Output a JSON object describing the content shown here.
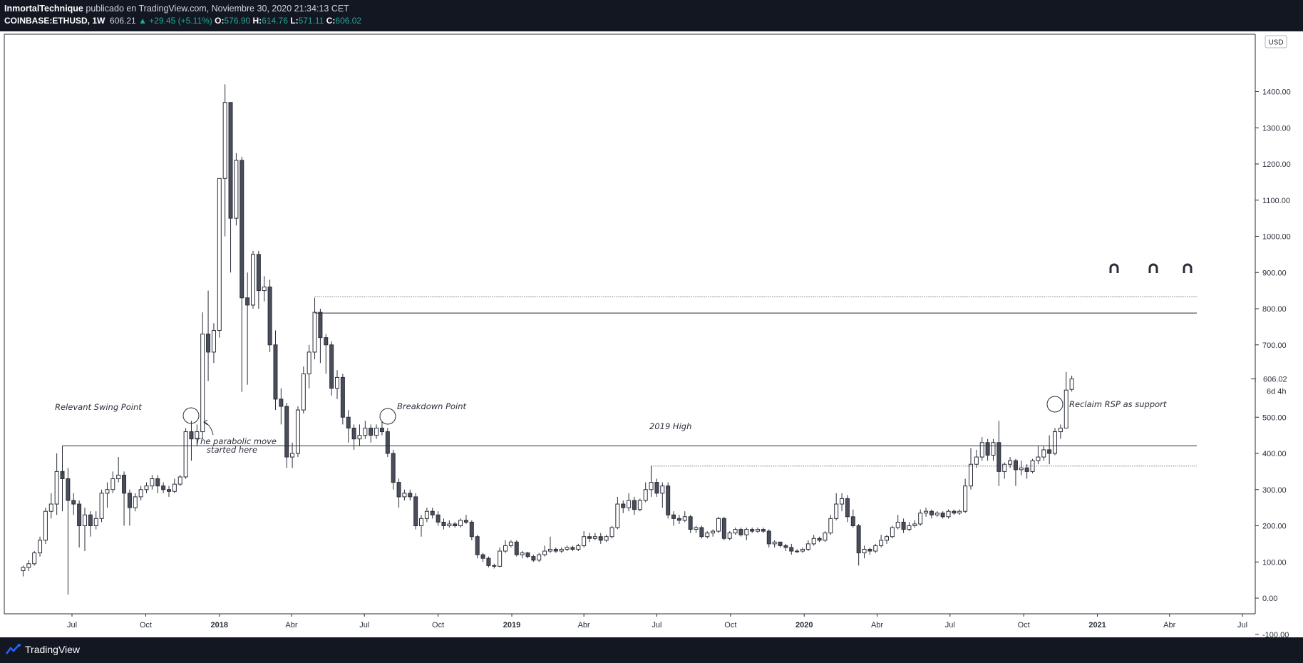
{
  "header": {
    "author": "InmortalTechnique",
    "published": "publicado en TradingView.com, Noviembre 30, 2020 21:34:13 CET",
    "symbol": "COINBASE:ETHUSD, 1W",
    "price": "606.21",
    "change": "▲ +29.45 (+5.11%)",
    "o_label": "O:",
    "o_value": "576.90",
    "h_label": "H:",
    "h_value": "614.76",
    "l_label": "L:",
    "l_value": "571.11",
    "c_label": "C:",
    "c_value": "606.02"
  },
  "footer": {
    "brand": "TradingView"
  },
  "colors": {
    "up_fill": "#ffffff",
    "down_fill": "#4a4e5a",
    "wick": "#2a2e39",
    "line": "#2a2e39",
    "price_tag": "#ffffff"
  },
  "chart_data": {
    "type": "candlestick",
    "currency_label": "USD",
    "timeframe": "1W",
    "ylim": [
      -130,
      1480
    ],
    "y_ticks": [
      -100,
      0,
      100,
      200,
      300,
      400,
      500,
      600,
      700,
      800,
      900,
      1000,
      1100,
      1200,
      1300,
      1400
    ],
    "y_tick_labels": [
      "-100.00",
      "0.00",
      "100.00",
      "200.00",
      "300.00",
      "400.00",
      "500.00",
      "600.00",
      "700.00",
      "800.00",
      "900.00",
      "1000.00",
      "1100.00",
      "1200.00",
      "1300.00",
      "1400.00"
    ],
    "current_price": {
      "value": 606.02,
      "label": "606.02",
      "countdown": "6d 4h"
    },
    "x_axis": [
      {
        "label": "Jul",
        "date": "2017-07"
      },
      {
        "label": "Oct",
        "date": "2017-10"
      },
      {
        "label": "2018",
        "date": "2018-01",
        "bold": true
      },
      {
        "label": "Abr",
        "date": "2018-04"
      },
      {
        "label": "Jul",
        "date": "2018-07"
      },
      {
        "label": "Oct",
        "date": "2018-10"
      },
      {
        "label": "2019",
        "date": "2019-01",
        "bold": true
      },
      {
        "label": "Abr",
        "date": "2019-04"
      },
      {
        "label": "Jul",
        "date": "2019-07"
      },
      {
        "label": "Oct",
        "date": "2019-10"
      },
      {
        "label": "2020",
        "date": "2020-01",
        "bold": true
      },
      {
        "label": "Abr",
        "date": "2020-04"
      },
      {
        "label": "Jul",
        "date": "2020-07"
      },
      {
        "label": "Oct",
        "date": "2020-10"
      },
      {
        "label": "2021",
        "date": "2021-01",
        "bold": true
      },
      {
        "label": "Abr",
        "date": "2021-04"
      },
      {
        "label": "Jul",
        "date": "2021-07"
      }
    ],
    "candles": [
      [
        "2017-05-01",
        76,
        90,
        60,
        85
      ],
      [
        "2017-05-08",
        85,
        105,
        75,
        95
      ],
      [
        "2017-05-15",
        95,
        130,
        90,
        125
      ],
      [
        "2017-05-22",
        125,
        170,
        115,
        160
      ],
      [
        "2017-05-29",
        160,
        250,
        150,
        240
      ],
      [
        "2017-06-05",
        240,
        290,
        220,
        260
      ],
      [
        "2017-06-12",
        260,
        400,
        230,
        350
      ],
      [
        "2017-06-19",
        350,
        360,
        240,
        330
      ],
      [
        "2017-06-26",
        330,
        360,
        10,
        270
      ],
      [
        "2017-07-03",
        270,
        290,
        230,
        260
      ],
      [
        "2017-07-10",
        260,
        270,
        140,
        200
      ],
      [
        "2017-07-17",
        200,
        250,
        130,
        230
      ],
      [
        "2017-07-24",
        230,
        240,
        170,
        200
      ],
      [
        "2017-07-31",
        200,
        240,
        190,
        220
      ],
      [
        "2017-08-07",
        220,
        300,
        210,
        290
      ],
      [
        "2017-08-14",
        290,
        320,
        250,
        300
      ],
      [
        "2017-08-21",
        300,
        350,
        290,
        330
      ],
      [
        "2017-08-28",
        330,
        390,
        320,
        340
      ],
      [
        "2017-09-04",
        340,
        350,
        200,
        290
      ],
      [
        "2017-09-11",
        290,
        300,
        200,
        250
      ],
      [
        "2017-09-18",
        250,
        290,
        240,
        280
      ],
      [
        "2017-09-25",
        280,
        310,
        270,
        300
      ],
      [
        "2017-10-02",
        300,
        320,
        290,
        310
      ],
      [
        "2017-10-09",
        310,
        340,
        300,
        330
      ],
      [
        "2017-10-16",
        330,
        340,
        290,
        310
      ],
      [
        "2017-10-23",
        310,
        320,
        290,
        300
      ],
      [
        "2017-10-30",
        300,
        310,
        280,
        295
      ],
      [
        "2017-11-06",
        295,
        330,
        290,
        315
      ],
      [
        "2017-11-13",
        315,
        340,
        310,
        335
      ],
      [
        "2017-11-20",
        335,
        470,
        330,
        460
      ],
      [
        "2017-11-27",
        460,
        490,
        380,
        440
      ],
      [
        "2017-12-04",
        440,
        480,
        420,
        460
      ],
      [
        "2017-12-11",
        460,
        790,
        440,
        730
      ],
      [
        "2017-12-18",
        730,
        850,
        600,
        680
      ],
      [
        "2017-12-25",
        680,
        760,
        650,
        740
      ],
      [
        "2018-01-01",
        740,
        1160,
        720,
        1160
      ],
      [
        "2018-01-08",
        1160,
        1420,
        1000,
        1370
      ],
      [
        "2018-01-15",
        1370,
        1370,
        900,
        1050
      ],
      [
        "2018-01-22",
        1050,
        1230,
        1030,
        1210
      ],
      [
        "2018-01-29",
        1210,
        1220,
        570,
        830
      ],
      [
        "2018-02-05",
        830,
        900,
        590,
        810
      ],
      [
        "2018-02-12",
        810,
        960,
        800,
        950
      ],
      [
        "2018-02-19",
        950,
        960,
        800,
        850
      ],
      [
        "2018-02-26",
        850,
        890,
        820,
        860
      ],
      [
        "2018-03-05",
        860,
        880,
        680,
        700
      ],
      [
        "2018-03-12",
        700,
        740,
        520,
        550
      ],
      [
        "2018-03-19",
        550,
        580,
        480,
        530
      ],
      [
        "2018-03-26",
        530,
        540,
        360,
        390
      ],
      [
        "2018-04-02",
        390,
        430,
        360,
        400
      ],
      [
        "2018-04-09",
        400,
        530,
        390,
        520
      ],
      [
        "2018-04-16",
        520,
        640,
        510,
        620
      ],
      [
        "2018-04-23",
        620,
        700,
        580,
        680
      ],
      [
        "2018-04-30",
        680,
        830,
        660,
        790
      ],
      [
        "2018-05-07",
        790,
        800,
        650,
        720
      ],
      [
        "2018-05-14",
        720,
        730,
        620,
        700
      ],
      [
        "2018-05-21",
        700,
        710,
        560,
        580
      ],
      [
        "2018-05-28",
        580,
        630,
        550,
        610
      ],
      [
        "2018-06-04",
        610,
        620,
        480,
        500
      ],
      [
        "2018-06-11",
        500,
        520,
        430,
        470
      ],
      [
        "2018-06-18",
        470,
        480,
        410,
        440
      ],
      [
        "2018-06-25",
        440,
        480,
        420,
        450
      ],
      [
        "2018-07-02",
        450,
        490,
        440,
        470
      ],
      [
        "2018-07-09",
        470,
        480,
        430,
        450
      ],
      [
        "2018-07-16",
        450,
        480,
        440,
        470
      ],
      [
        "2018-07-23",
        470,
        490,
        450,
        460
      ],
      [
        "2018-07-30",
        460,
        470,
        390,
        400
      ],
      [
        "2018-08-06",
        400,
        410,
        300,
        320
      ],
      [
        "2018-08-13",
        320,
        330,
        250,
        280
      ],
      [
        "2018-08-20",
        280,
        300,
        270,
        290
      ],
      [
        "2018-08-27",
        290,
        300,
        270,
        280
      ],
      [
        "2018-09-03",
        280,
        290,
        190,
        200
      ],
      [
        "2018-09-10",
        200,
        230,
        170,
        220
      ],
      [
        "2018-09-17",
        220,
        250,
        210,
        240
      ],
      [
        "2018-09-24",
        240,
        250,
        220,
        230
      ],
      [
        "2018-10-01",
        230,
        240,
        200,
        210
      ],
      [
        "2018-10-08",
        210,
        220,
        190,
        200
      ],
      [
        "2018-10-15",
        200,
        215,
        195,
        205
      ],
      [
        "2018-10-22",
        205,
        210,
        195,
        200
      ],
      [
        "2018-10-29",
        200,
        220,
        195,
        215
      ],
      [
        "2018-11-05",
        215,
        230,
        205,
        210
      ],
      [
        "2018-11-12",
        210,
        215,
        160,
        170
      ],
      [
        "2018-11-19",
        170,
        175,
        110,
        120
      ],
      [
        "2018-11-26",
        120,
        125,
        100,
        110
      ],
      [
        "2018-12-03",
        110,
        115,
        85,
        90
      ],
      [
        "2018-12-10",
        90,
        95,
        82,
        88
      ],
      [
        "2018-12-17",
        88,
        140,
        85,
        130
      ],
      [
        "2018-12-24",
        130,
        160,
        125,
        145
      ],
      [
        "2018-12-31",
        145,
        160,
        140,
        155
      ],
      [
        "2019-01-07",
        155,
        160,
        115,
        120
      ],
      [
        "2019-01-14",
        120,
        130,
        110,
        125
      ],
      [
        "2019-01-21",
        125,
        128,
        110,
        115
      ],
      [
        "2019-01-28",
        115,
        120,
        100,
        105
      ],
      [
        "2019-02-04",
        105,
        125,
        100,
        120
      ],
      [
        "2019-02-11",
        120,
        145,
        115,
        130
      ],
      [
        "2019-02-18",
        130,
        170,
        125,
        135
      ],
      [
        "2019-02-25",
        135,
        140,
        125,
        130
      ],
      [
        "2019-03-04",
        130,
        140,
        125,
        135
      ],
      [
        "2019-03-11",
        135,
        145,
        130,
        140
      ],
      [
        "2019-03-18",
        140,
        145,
        130,
        135
      ],
      [
        "2019-03-25",
        135,
        150,
        130,
        145
      ],
      [
        "2019-04-01",
        145,
        185,
        140,
        170
      ],
      [
        "2019-04-08",
        170,
        180,
        155,
        165
      ],
      [
        "2019-04-15",
        165,
        180,
        160,
        170
      ],
      [
        "2019-04-22",
        170,
        180,
        150,
        160
      ],
      [
        "2019-04-29",
        160,
        175,
        155,
        170
      ],
      [
        "2019-05-06",
        170,
        200,
        165,
        195
      ],
      [
        "2019-05-13",
        195,
        280,
        190,
        260
      ],
      [
        "2019-05-20",
        260,
        270,
        235,
        250
      ],
      [
        "2019-05-27",
        250,
        290,
        240,
        270
      ],
      [
        "2019-06-03",
        270,
        280,
        230,
        245
      ],
      [
        "2019-06-10",
        245,
        275,
        240,
        270
      ],
      [
        "2019-06-17",
        270,
        320,
        265,
        300
      ],
      [
        "2019-06-24",
        300,
        365,
        280,
        320
      ],
      [
        "2019-07-01",
        320,
        330,
        280,
        290
      ],
      [
        "2019-07-08",
        290,
        320,
        250,
        310
      ],
      [
        "2019-07-15",
        310,
        320,
        220,
        230
      ],
      [
        "2019-07-22",
        230,
        240,
        200,
        220
      ],
      [
        "2019-07-29",
        220,
        230,
        205,
        215
      ],
      [
        "2019-08-05",
        215,
        240,
        210,
        225
      ],
      [
        "2019-08-12",
        225,
        230,
        180,
        190
      ],
      [
        "2019-08-19",
        190,
        200,
        180,
        195
      ],
      [
        "2019-08-26",
        195,
        200,
        165,
        170
      ],
      [
        "2019-09-02",
        170,
        185,
        165,
        180
      ],
      [
        "2019-09-09",
        180,
        190,
        170,
        185
      ],
      [
        "2019-09-16",
        185,
        225,
        180,
        220
      ],
      [
        "2019-09-23",
        220,
        225,
        160,
        165
      ],
      [
        "2019-09-30",
        165,
        185,
        160,
        180
      ],
      [
        "2019-10-07",
        180,
        195,
        175,
        190
      ],
      [
        "2019-10-14",
        190,
        195,
        170,
        175
      ],
      [
        "2019-10-21",
        175,
        195,
        160,
        190
      ],
      [
        "2019-10-28",
        190,
        195,
        180,
        185
      ],
      [
        "2019-11-04",
        185,
        195,
        180,
        190
      ],
      [
        "2019-11-11",
        190,
        195,
        180,
        185
      ],
      [
        "2019-11-18",
        185,
        190,
        140,
        150
      ],
      [
        "2019-11-25",
        150,
        160,
        140,
        155
      ],
      [
        "2019-12-02",
        155,
        155,
        140,
        145
      ],
      [
        "2019-12-09",
        145,
        150,
        130,
        140
      ],
      [
        "2019-12-16",
        140,
        150,
        120,
        130
      ],
      [
        "2019-12-23",
        130,
        135,
        125,
        130
      ],
      [
        "2019-12-30",
        130,
        140,
        125,
        135
      ],
      [
        "2020-01-06",
        135,
        160,
        130,
        150
      ],
      [
        "2020-01-13",
        150,
        175,
        145,
        165
      ],
      [
        "2020-01-20",
        165,
        170,
        155,
        160
      ],
      [
        "2020-01-27",
        160,
        185,
        155,
        180
      ],
      [
        "2020-02-03",
        180,
        230,
        175,
        220
      ],
      [
        "2020-02-10",
        220,
        290,
        215,
        260
      ],
      [
        "2020-02-17",
        260,
        290,
        240,
        275
      ],
      [
        "2020-02-24",
        275,
        285,
        210,
        225
      ],
      [
        "2020-03-02",
        225,
        245,
        195,
        200
      ],
      [
        "2020-03-09",
        200,
        205,
        90,
        125
      ],
      [
        "2020-03-16",
        125,
        145,
        110,
        135
      ],
      [
        "2020-03-23",
        135,
        140,
        120,
        130
      ],
      [
        "2020-03-30",
        130,
        150,
        125,
        145
      ],
      [
        "2020-04-06",
        145,
        175,
        140,
        160
      ],
      [
        "2020-04-13",
        160,
        175,
        150,
        170
      ],
      [
        "2020-04-20",
        170,
        200,
        165,
        195
      ],
      [
        "2020-04-27",
        195,
        230,
        190,
        210
      ],
      [
        "2020-05-04",
        210,
        220,
        180,
        190
      ],
      [
        "2020-05-11",
        190,
        210,
        185,
        200
      ],
      [
        "2020-05-18",
        200,
        215,
        195,
        205
      ],
      [
        "2020-05-25",
        205,
        245,
        200,
        235
      ],
      [
        "2020-06-01",
        235,
        250,
        225,
        240
      ],
      [
        "2020-06-08",
        240,
        245,
        220,
        230
      ],
      [
        "2020-06-15",
        230,
        240,
        225,
        235
      ],
      [
        "2020-06-22",
        235,
        240,
        220,
        225
      ],
      [
        "2020-06-29",
        225,
        245,
        220,
        240
      ],
      [
        "2020-07-06",
        240,
        245,
        230,
        235
      ],
      [
        "2020-07-13",
        235,
        245,
        230,
        240
      ],
      [
        "2020-07-20",
        240,
        330,
        235,
        310
      ],
      [
        "2020-07-27",
        310,
        415,
        300,
        370
      ],
      [
        "2020-08-03",
        370,
        410,
        360,
        390
      ],
      [
        "2020-08-10",
        390,
        445,
        380,
        430
      ],
      [
        "2020-08-17",
        430,
        440,
        380,
        395
      ],
      [
        "2020-08-24",
        395,
        440,
        380,
        430
      ],
      [
        "2020-08-31",
        430,
        490,
        310,
        350
      ],
      [
        "2020-09-07",
        350,
        375,
        330,
        370
      ],
      [
        "2020-09-14",
        370,
        390,
        360,
        380
      ],
      [
        "2020-09-21",
        380,
        385,
        310,
        355
      ],
      [
        "2020-09-28",
        355,
        380,
        340,
        360
      ],
      [
        "2020-10-05",
        360,
        370,
        330,
        350
      ],
      [
        "2020-10-12",
        350,
        385,
        345,
        380
      ],
      [
        "2020-10-19",
        380,
        420,
        370,
        390
      ],
      [
        "2020-10-26",
        390,
        420,
        380,
        410
      ],
      [
        "2020-11-02",
        410,
        450,
        370,
        400
      ],
      [
        "2020-11-09",
        400,
        470,
        395,
        460
      ],
      [
        "2020-11-16",
        460,
        480,
        440,
        470
      ],
      [
        "2020-11-23",
        470,
        625,
        470,
        575
      ],
      [
        "2020-11-30",
        577,
        615,
        571,
        606
      ]
    ]
  },
  "annotations": {
    "swing": "Relevant Swing Point",
    "breakdown": "Breakdown Point",
    "high2019": "2019 High",
    "reclaim": "Reclaim RSP as support",
    "parabolic1": "The parabolic move",
    "parabolic2": "started here"
  }
}
